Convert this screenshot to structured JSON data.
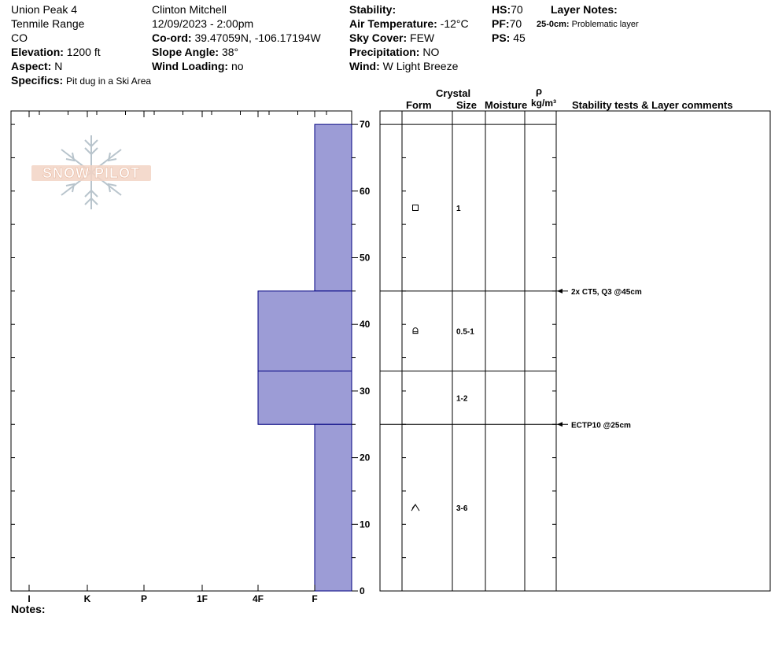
{
  "site": {
    "name": "Union Peak 4",
    "range": "Tenmile Range",
    "state": "CO",
    "elevation_label": "Elevation:",
    "elevation": "1200 ft",
    "aspect_label": "Aspect:",
    "aspect": "N",
    "specifics_label": "Specifics:",
    "specifics": "Pit dug in a Ski Area"
  },
  "observer": {
    "name": "Clinton Mitchell",
    "datetime": "12/09/2023 - 2:00pm",
    "coord_label": "Co-ord:",
    "coord": "39.47059N, -106.17194W",
    "slope_label": "Slope Angle:",
    "slope": "38°",
    "wind_loading_label": "Wind Loading:",
    "wind_loading": "no"
  },
  "conditions": {
    "stability_label": "Stability:",
    "stability": "",
    "air_temp_label": "Air Temperature:",
    "air_temp": "-12°C",
    "sky_label": "Sky Cover:",
    "sky": "FEW",
    "precip_label": "Precipitation:",
    "precip": "NO",
    "wind_label": "Wind:",
    "wind": "W Light Breeze"
  },
  "depths": {
    "hs_label": "HS:",
    "hs": "70",
    "pf_label": "PF:",
    "pf": "70",
    "ps_label": "PS:",
    "ps": "45"
  },
  "layer_notes": {
    "title": "Layer Notes:",
    "entries": [
      {
        "range": "25-0cm:",
        "text": "Problematic layer"
      }
    ]
  },
  "headers": {
    "crystal": "Crystal",
    "form": "Form",
    "size": "Size",
    "moisture": "Moisture",
    "rho": "ρ",
    "density_unit": "kg/m³",
    "stability_tests": "Stability tests & Layer comments"
  },
  "notes_label": "Notes:",
  "logo_text": "SNOW PILOT",
  "chart_data": {
    "type": "bar",
    "orientation": "horizontal",
    "y_unit": "cm",
    "ylim": [
      0,
      70
    ],
    "y_ticks": [
      0,
      10,
      20,
      30,
      40,
      50,
      60,
      70
    ],
    "hardness_scale": [
      "I",
      "K",
      "P",
      "1F",
      "4F",
      "F"
    ],
    "layers": [
      {
        "top": 70,
        "bottom": 45,
        "hardness": "F",
        "form_icon": "faceted-square-icon",
        "size": "1"
      },
      {
        "top": 45,
        "bottom": 33,
        "hardness": "4F",
        "form_icon": "rounding-facet-icon",
        "size": "0.5-1"
      },
      {
        "top": 33,
        "bottom": 25,
        "hardness": "4F",
        "form_icon": "",
        "size": "1-2"
      },
      {
        "top": 25,
        "bottom": 0,
        "hardness": "F",
        "form_icon": "depth-hoar-icon",
        "size": "3-6"
      }
    ],
    "stability_tests": [
      {
        "depth": 45,
        "text": "2x CT5, Q3 @45cm"
      },
      {
        "depth": 25,
        "text": "ECTP10 @25cm"
      }
    ],
    "fill_color": "#9c9cd6",
    "line_color": "#000080"
  }
}
